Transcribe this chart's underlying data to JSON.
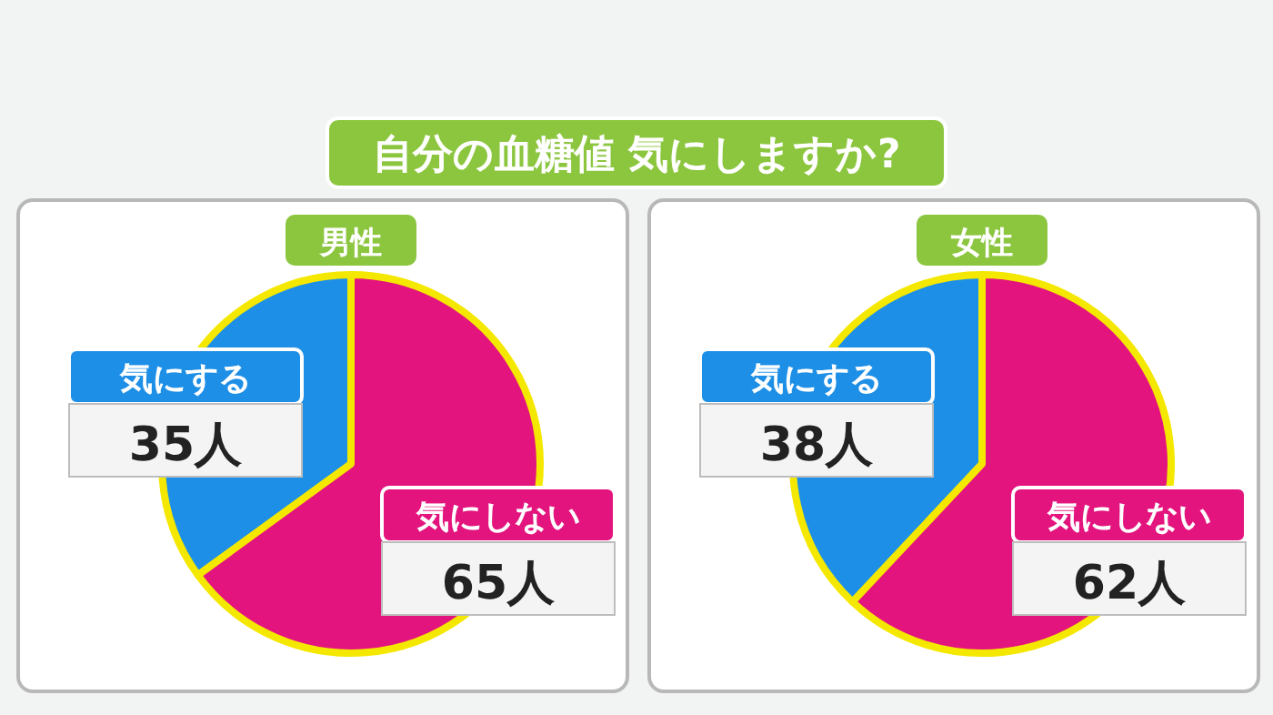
{
  "chart_data": [
    {
      "type": "pie",
      "title": "自分の血糖値 気にしますか?",
      "subtitle": "男性",
      "categories": [
        "気にする",
        "気にしない"
      ],
      "values": [
        35,
        65
      ],
      "colors": [
        "#1e8fe6",
        "#e3147e"
      ],
      "value_labels": [
        "35人",
        "65人"
      ]
    },
    {
      "type": "pie",
      "subtitle": "女性",
      "categories": [
        "気にする",
        "気にしない"
      ],
      "values": [
        38,
        62
      ],
      "colors": [
        "#1e8fe6",
        "#e3147e"
      ],
      "value_labels": [
        "38人",
        "62人"
      ]
    }
  ]
}
